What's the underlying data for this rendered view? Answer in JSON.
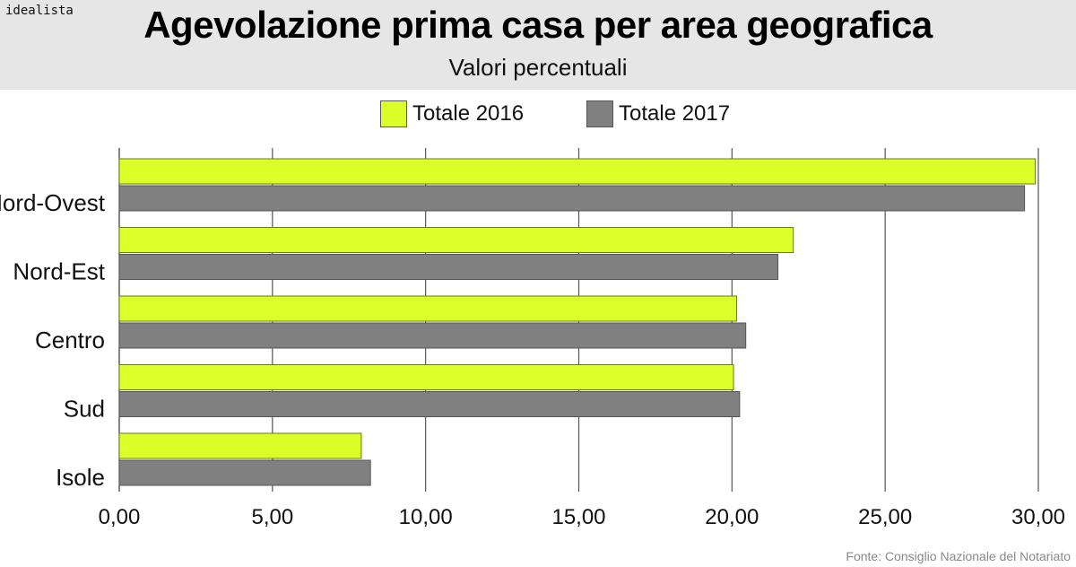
{
  "logo": "idealista",
  "title": "Agevolazione prima casa per area geografica",
  "subtitle": "Valori percentuali",
  "source": "Fonte: Consiglio Nazionale del Notariato",
  "chart_data": {
    "type": "bar",
    "orientation": "horizontal",
    "categories": [
      "Nord-Ovest",
      "Nord-Est",
      "Centro",
      "Sud",
      "Isole"
    ],
    "series": [
      {
        "name": "Totale 2016",
        "color": "#dcff2a",
        "values": [
          29.9,
          22.0,
          20.15,
          20.05,
          7.9
        ]
      },
      {
        "name": "Totale 2017",
        "color": "#808080",
        "values": [
          29.55,
          21.5,
          20.45,
          20.25,
          8.2
        ]
      }
    ],
    "xlim": [
      0,
      30
    ],
    "xticks": [
      "0,00",
      "5,00",
      "10,00",
      "15,00",
      "20,00",
      "25,00",
      "30,00"
    ],
    "grid": "vertical",
    "legend": "top"
  }
}
